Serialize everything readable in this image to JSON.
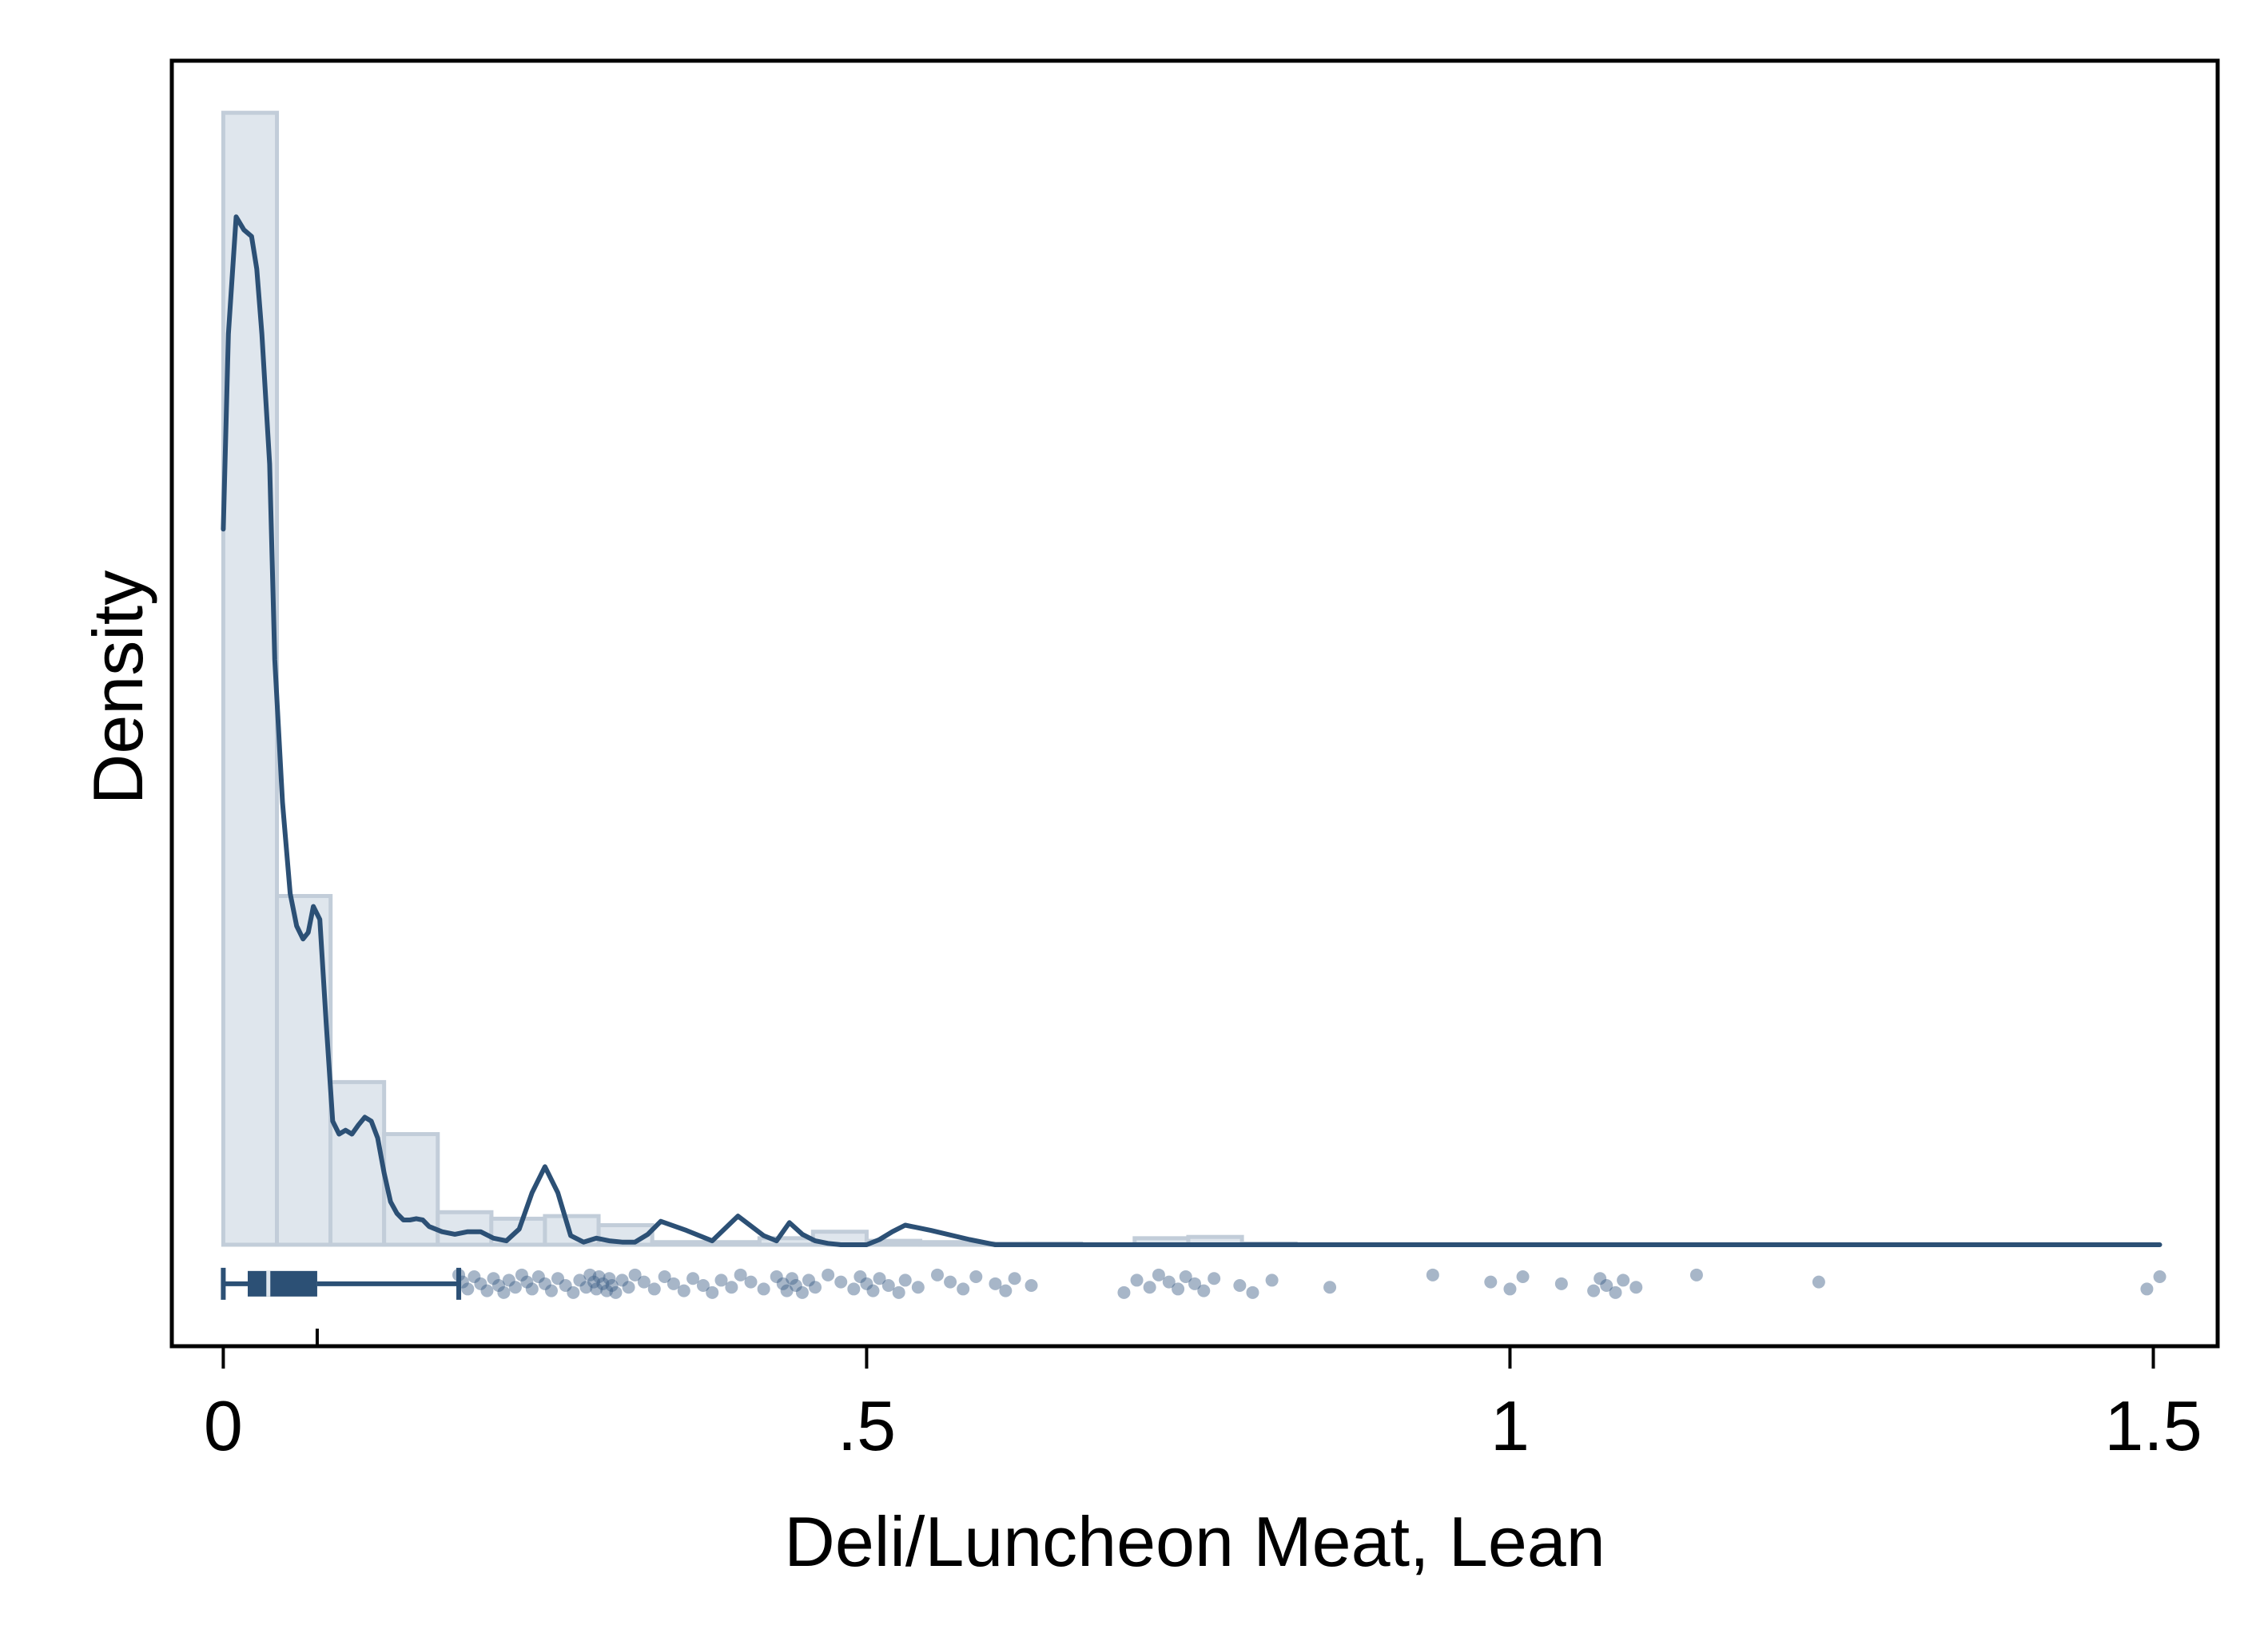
{
  "chart_data": {
    "type": "histogram",
    "xlabel": "Deli/Luncheon Meat, Lean",
    "ylabel": "Density",
    "xlim": [
      -0.04,
      1.55
    ],
    "ylim": [
      -0.78,
      9.1
    ],
    "x_ticks": [
      {
        "value": 0,
        "label": "0"
      },
      {
        "value": 0.5,
        "label": ".5"
      },
      {
        "value": 1,
        "label": "1"
      },
      {
        "value": 1.5,
        "label": "1.5"
      }
    ],
    "histogram": {
      "bin_width": 0.0417,
      "bins": [
        {
          "x0": 0.0,
          "density": 8.7
        },
        {
          "x0": 0.0417,
          "density": 2.68
        },
        {
          "x0": 0.0833,
          "density": 1.25
        },
        {
          "x0": 0.125,
          "density": 0.85
        },
        {
          "x0": 0.1667,
          "density": 0.25
        },
        {
          "x0": 0.2083,
          "density": 0.2
        },
        {
          "x0": 0.25,
          "density": 0.22
        },
        {
          "x0": 0.2917,
          "density": 0.15
        },
        {
          "x0": 0.3333,
          "density": 0.02
        },
        {
          "x0": 0.375,
          "density": 0.02
        },
        {
          "x0": 0.4167,
          "density": 0.05
        },
        {
          "x0": 0.4583,
          "density": 0.1
        },
        {
          "x0": 0.5,
          "density": 0.03
        },
        {
          "x0": 0.5417,
          "density": 0.02
        },
        {
          "x0": 0.5833,
          "density": 0.01
        },
        {
          "x0": 0.625,
          "density": 0.01
        },
        {
          "x0": 0.6667,
          "density": 0.0
        },
        {
          "x0": 0.7083,
          "density": 0.05
        },
        {
          "x0": 0.75,
          "density": 0.06
        },
        {
          "x0": 0.7917,
          "density": 0.01
        }
      ]
    },
    "kde": {
      "x": [
        0.0,
        0.004,
        0.01,
        0.016,
        0.022,
        0.026,
        0.03,
        0.036,
        0.04,
        0.046,
        0.052,
        0.057,
        0.062,
        0.066,
        0.07,
        0.075,
        0.08,
        0.085,
        0.09,
        0.095,
        0.1,
        0.105,
        0.11,
        0.115,
        0.12,
        0.125,
        0.13,
        0.135,
        0.14,
        0.145,
        0.15,
        0.155,
        0.16,
        0.17,
        0.18,
        0.19,
        0.2,
        0.21,
        0.22,
        0.23,
        0.24,
        0.25,
        0.26,
        0.27,
        0.28,
        0.29,
        0.3,
        0.31,
        0.32,
        0.33,
        0.34,
        0.36,
        0.38,
        0.4,
        0.42,
        0.43,
        0.44,
        0.45,
        0.46,
        0.47,
        0.48,
        0.49,
        0.5,
        0.51,
        0.52,
        0.53,
        0.55,
        0.58,
        0.6,
        0.65,
        0.7,
        0.72,
        0.74,
        0.75,
        0.76,
        0.78,
        0.8,
        0.85,
        0.9,
        0.95,
        1.0,
        1.03,
        1.06,
        1.09,
        1.11,
        1.15,
        1.2,
        1.3,
        1.4,
        1.45,
        1.49,
        1.505
      ],
      "y": [
        5.5,
        7.0,
        7.9,
        7.8,
        7.75,
        7.5,
        7.0,
        6.0,
        4.5,
        3.4,
        2.7,
        2.45,
        2.35,
        2.4,
        2.6,
        2.5,
        1.7,
        0.95,
        0.85,
        0.88,
        0.85,
        0.92,
        0.98,
        0.95,
        0.82,
        0.55,
        0.33,
        0.24,
        0.19,
        0.19,
        0.2,
        0.19,
        0.14,
        0.1,
        0.08,
        0.1,
        0.1,
        0.05,
        0.03,
        0.12,
        0.4,
        0.6,
        0.4,
        0.07,
        0.02,
        0.05,
        0.03,
        0.02,
        0.02,
        0.08,
        0.18,
        0.11,
        0.03,
        0.22,
        0.07,
        0.03,
        0.17,
        0.08,
        0.03,
        0.01,
        0.0,
        0.0,
        0.0,
        0.04,
        0.1,
        0.15,
        0.11,
        0.04,
        0.0,
        0.0,
        0.0,
        0.0,
        0.0,
        0.0,
        0.0,
        0.0,
        0.0,
        0.0,
        0.0,
        0.0,
        0.0,
        0.0,
        0.0,
        0.0,
        0.0,
        0.0,
        0.0,
        0.0,
        0.0,
        0.0,
        0.0,
        0.0
      ]
    },
    "boxplot": {
      "whisker_low": 0.0,
      "q1": 0.019,
      "median": 0.035,
      "q3": 0.073,
      "whisker_high": 0.183
    },
    "strip_points": [
      0.183,
      0.186,
      0.19,
      0.195,
      0.2,
      0.205,
      0.21,
      0.214,
      0.218,
      0.222,
      0.227,
      0.232,
      0.236,
      0.24,
      0.245,
      0.25,
      0.255,
      0.26,
      0.266,
      0.272,
      0.277,
      0.282,
      0.285,
      0.288,
      0.29,
      0.292,
      0.295,
      0.298,
      0.3,
      0.302,
      0.305,
      0.31,
      0.315,
      0.32,
      0.327,
      0.335,
      0.343,
      0.35,
      0.358,
      0.365,
      0.373,
      0.38,
      0.387,
      0.395,
      0.402,
      0.41,
      0.42,
      0.43,
      0.435,
      0.438,
      0.442,
      0.445,
      0.45,
      0.455,
      0.46,
      0.47,
      0.48,
      0.49,
      0.495,
      0.5,
      0.505,
      0.51,
      0.517,
      0.525,
      0.53,
      0.54,
      0.555,
      0.565,
      0.575,
      0.585,
      0.6,
      0.608,
      0.615,
      0.628,
      0.7,
      0.71,
      0.72,
      0.727,
      0.735,
      0.742,
      0.748,
      0.755,
      0.762,
      0.77,
      0.79,
      0.8,
      0.815,
      0.86,
      0.94,
      0.985,
      1.0,
      1.01,
      1.04,
      1.065,
      1.07,
      1.075,
      1.082,
      1.088,
      1.098,
      1.145,
      1.24,
      1.495,
      1.505
    ]
  },
  "colors": {
    "accent": "#2c5075",
    "bar_fill": "#dfe6ed",
    "bar_stroke": "#c2cdd9",
    "strip_point": "#3b5e84"
  }
}
